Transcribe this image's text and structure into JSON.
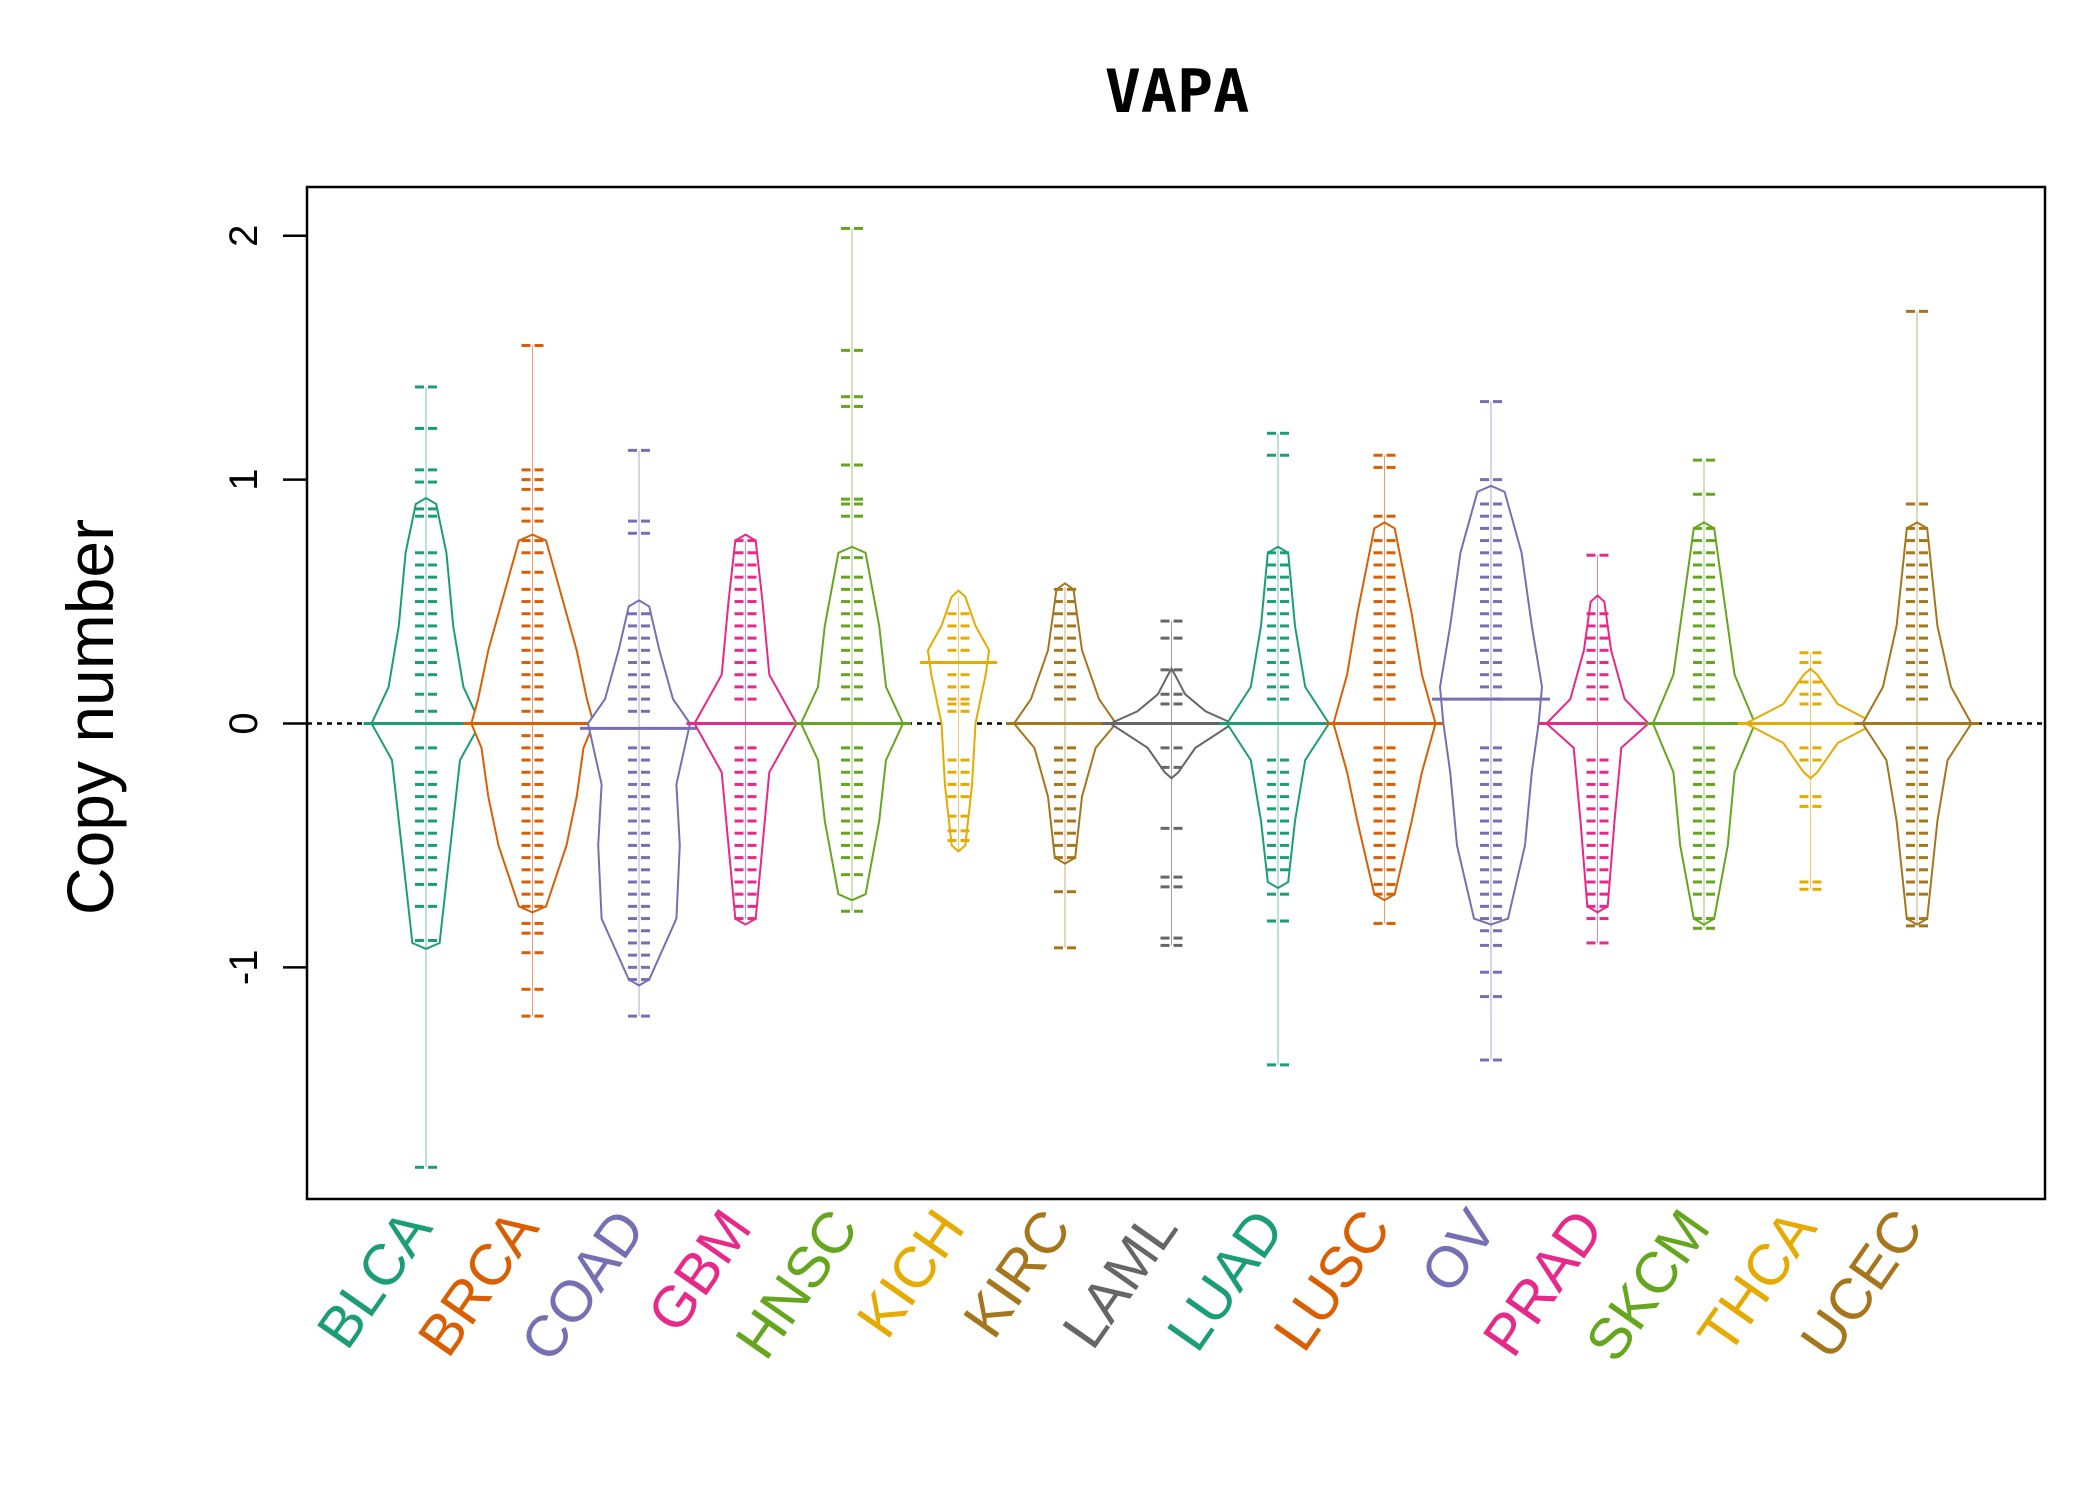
{
  "chart_data": {
    "type": "beanplot",
    "title": "VAPA",
    "xlabel": "",
    "ylabel": "Copy number",
    "ylim": [
      -1.95,
      2.2
    ],
    "yticks": [
      {
        "value": -1,
        "label": "-1"
      },
      {
        "value": 0,
        "label": "0"
      },
      {
        "value": 1,
        "label": "1"
      },
      {
        "value": 2,
        "label": "2"
      }
    ],
    "reference_line": 0,
    "categories": [
      {
        "name": "BLCA",
        "color": "#1B9E77",
        "median": 0.0,
        "max_width": 0.32,
        "min": -1.82,
        "max": 1.38,
        "profile": [
          [
            -0.9,
            0.08
          ],
          [
            -0.65,
            0.12
          ],
          [
            -0.4,
            0.16
          ],
          [
            -0.15,
            0.2
          ],
          [
            0.0,
            0.32
          ],
          [
            0.15,
            0.22
          ],
          [
            0.4,
            0.16
          ],
          [
            0.7,
            0.12
          ],
          [
            0.9,
            0.06
          ]
        ],
        "points": [
          -1.82,
          -0.89,
          -0.75,
          -0.66,
          -0.6,
          -0.55,
          -0.5,
          -0.45,
          -0.4,
          -0.35,
          -0.3,
          -0.25,
          -0.2,
          -0.1,
          0.05,
          0.12,
          0.2,
          0.25,
          0.3,
          0.35,
          0.4,
          0.45,
          0.5,
          0.55,
          0.6,
          0.65,
          0.7,
          0.85,
          0.88,
          0.99,
          1.04,
          1.21,
          1.38
        ]
      },
      {
        "name": "BRCA",
        "color": "#D95F02",
        "median": 0.0,
        "max_width": 0.36,
        "min": -1.2,
        "max": 1.55,
        "profile": [
          [
            -0.75,
            0.08
          ],
          [
            -0.5,
            0.2
          ],
          [
            -0.3,
            0.26
          ],
          [
            -0.1,
            0.3
          ],
          [
            0.0,
            0.36
          ],
          [
            0.1,
            0.32
          ],
          [
            0.3,
            0.26
          ],
          [
            0.5,
            0.18
          ],
          [
            0.75,
            0.08
          ]
        ],
        "points": [
          -1.2,
          -1.09,
          -0.94,
          -0.86,
          -0.82,
          -0.75,
          -0.7,
          -0.65,
          -0.6,
          -0.55,
          -0.5,
          -0.45,
          -0.4,
          -0.35,
          -0.3,
          -0.25,
          -0.2,
          -0.15,
          -0.1,
          -0.05,
          0.05,
          0.1,
          0.15,
          0.2,
          0.25,
          0.3,
          0.35,
          0.4,
          0.45,
          0.5,
          0.55,
          0.62,
          0.7,
          0.75,
          0.83,
          0.88,
          0.96,
          1.0,
          1.04,
          1.55
        ]
      },
      {
        "name": "COAD",
        "color": "#7570B3",
        "median": -0.02,
        "max_width": 0.3,
        "min": -1.2,
        "max": 1.12,
        "profile": [
          [
            -1.05,
            0.06
          ],
          [
            -0.8,
            0.22
          ],
          [
            -0.5,
            0.24
          ],
          [
            -0.25,
            0.22
          ],
          [
            0.0,
            0.3
          ],
          [
            0.1,
            0.2
          ],
          [
            0.3,
            0.12
          ],
          [
            0.48,
            0.06
          ]
        ],
        "points": [
          -1.2,
          -1.05,
          -1.0,
          -0.95,
          -0.9,
          -0.85,
          -0.8,
          -0.75,
          -0.7,
          -0.65,
          -0.6,
          -0.55,
          -0.5,
          -0.45,
          -0.4,
          -0.35,
          -0.3,
          -0.25,
          -0.2,
          -0.15,
          -0.1,
          0.05,
          0.1,
          0.15,
          0.2,
          0.25,
          0.3,
          0.35,
          0.4,
          0.45,
          0.78,
          0.83,
          1.12
        ]
      },
      {
        "name": "GBM",
        "color": "#E7298A",
        "median": 0.0,
        "max_width": 0.3,
        "min": -0.8,
        "max": 0.75,
        "profile": [
          [
            -0.8,
            0.06
          ],
          [
            -0.5,
            0.1
          ],
          [
            -0.2,
            0.14
          ],
          [
            0.0,
            0.3
          ],
          [
            0.2,
            0.14
          ],
          [
            0.5,
            0.1
          ],
          [
            0.75,
            0.06
          ]
        ],
        "points": [
          -0.8,
          -0.75,
          -0.7,
          -0.65,
          -0.6,
          -0.55,
          -0.5,
          -0.45,
          -0.4,
          -0.35,
          -0.3,
          -0.25,
          -0.2,
          -0.15,
          -0.1,
          0.1,
          0.15,
          0.2,
          0.25,
          0.3,
          0.35,
          0.4,
          0.45,
          0.5,
          0.55,
          0.6,
          0.65,
          0.7,
          0.75
        ]
      },
      {
        "name": "HNSC",
        "color": "#66A61E",
        "median": 0.0,
        "max_width": 0.3,
        "min": -0.77,
        "max": 2.03,
        "profile": [
          [
            -0.7,
            0.08
          ],
          [
            -0.4,
            0.16
          ],
          [
            -0.15,
            0.2
          ],
          [
            0.0,
            0.3
          ],
          [
            0.15,
            0.2
          ],
          [
            0.4,
            0.16
          ],
          [
            0.7,
            0.08
          ]
        ],
        "points": [
          -0.77,
          -0.62,
          -0.55,
          -0.5,
          -0.45,
          -0.4,
          -0.35,
          -0.3,
          -0.25,
          -0.2,
          -0.15,
          -0.1,
          0.1,
          0.15,
          0.2,
          0.25,
          0.3,
          0.35,
          0.4,
          0.45,
          0.5,
          0.55,
          0.6,
          0.68,
          0.85,
          0.9,
          0.92,
          1.06,
          1.3,
          1.34,
          1.53,
          2.03
        ]
      },
      {
        "name": "KICH",
        "color": "#E6AB02",
        "median": 0.25,
        "max_width": 0.18,
        "min": -0.52,
        "max": 0.52,
        "profile": [
          [
            -0.5,
            0.04
          ],
          [
            -0.25,
            0.08
          ],
          [
            0.0,
            0.1
          ],
          [
            0.2,
            0.16
          ],
          [
            0.3,
            0.18
          ],
          [
            0.4,
            0.1
          ],
          [
            0.52,
            0.04
          ]
        ],
        "points": [
          -0.48,
          -0.44,
          -0.38,
          -0.3,
          -0.25,
          -0.2,
          -0.15,
          0.05,
          0.08,
          0.1,
          0.15,
          0.2,
          0.25,
          0.3,
          0.35,
          0.4,
          0.45
        ]
      },
      {
        "name": "KIRC",
        "color": "#A6761D",
        "median": 0.0,
        "max_width": 0.3,
        "min": -0.92,
        "max": 0.56,
        "profile": [
          [
            -0.55,
            0.06
          ],
          [
            -0.3,
            0.1
          ],
          [
            -0.1,
            0.18
          ],
          [
            0.0,
            0.3
          ],
          [
            0.1,
            0.2
          ],
          [
            0.3,
            0.1
          ],
          [
            0.55,
            0.05
          ]
        ],
        "points": [
          -0.92,
          -0.69,
          -0.55,
          -0.5,
          -0.45,
          -0.4,
          -0.35,
          -0.3,
          -0.25,
          -0.2,
          -0.15,
          -0.1,
          0.1,
          0.15,
          0.2,
          0.25,
          0.3,
          0.35,
          0.4,
          0.45,
          0.5,
          0.55
        ]
      },
      {
        "name": "LAML",
        "color": "#666666",
        "median": 0.0,
        "max_width": 0.36,
        "min": -0.91,
        "max": 0.42,
        "profile": [
          [
            -0.2,
            0.04
          ],
          [
            -0.1,
            0.14
          ],
          [
            0.0,
            0.36
          ],
          [
            0.05,
            0.2
          ],
          [
            0.12,
            0.08
          ],
          [
            0.2,
            0.02
          ]
        ],
        "points": [
          -0.91,
          -0.88,
          -0.67,
          -0.63,
          -0.43,
          -0.18,
          -0.1,
          0.08,
          0.12,
          0.22,
          0.35,
          0.42
        ]
      },
      {
        "name": "LUAD",
        "color": "#1B9E77",
        "median": 0.0,
        "max_width": 0.3,
        "min": -1.4,
        "max": 1.19,
        "profile": [
          [
            -0.65,
            0.06
          ],
          [
            -0.4,
            0.1
          ],
          [
            -0.15,
            0.16
          ],
          [
            0.0,
            0.3
          ],
          [
            0.15,
            0.16
          ],
          [
            0.4,
            0.1
          ],
          [
            0.7,
            0.06
          ]
        ],
        "points": [
          -1.4,
          -0.81,
          -0.7,
          -0.6,
          -0.55,
          -0.5,
          -0.45,
          -0.4,
          -0.35,
          -0.3,
          -0.25,
          -0.2,
          -0.15,
          0.1,
          0.15,
          0.2,
          0.25,
          0.3,
          0.35,
          0.4,
          0.45,
          0.5,
          0.55,
          0.6,
          0.65,
          0.7,
          1.1,
          1.19
        ]
      },
      {
        "name": "LUSC",
        "color": "#D95F02",
        "median": 0.0,
        "max_width": 0.3,
        "min": -0.82,
        "max": 1.1,
        "profile": [
          [
            -0.7,
            0.06
          ],
          [
            -0.4,
            0.16
          ],
          [
            -0.2,
            0.22
          ],
          [
            0.0,
            0.3
          ],
          [
            0.2,
            0.22
          ],
          [
            0.45,
            0.16
          ],
          [
            0.8,
            0.06
          ]
        ],
        "points": [
          -0.82,
          -0.7,
          -0.66,
          -0.6,
          -0.55,
          -0.5,
          -0.45,
          -0.4,
          -0.35,
          -0.3,
          -0.25,
          -0.2,
          -0.15,
          -0.1,
          0.1,
          0.15,
          0.2,
          0.25,
          0.3,
          0.35,
          0.4,
          0.45,
          0.5,
          0.55,
          0.6,
          0.65,
          0.7,
          0.75,
          0.85,
          1.05,
          1.1
        ]
      },
      {
        "name": "OV",
        "color": "#7570B3",
        "median": 0.1,
        "max_width": 0.3,
        "min": -1.38,
        "max": 1.32,
        "profile": [
          [
            -0.8,
            0.1
          ],
          [
            -0.5,
            0.2
          ],
          [
            -0.2,
            0.24
          ],
          [
            0.0,
            0.28
          ],
          [
            0.15,
            0.3
          ],
          [
            0.4,
            0.24
          ],
          [
            0.7,
            0.18
          ],
          [
            0.95,
            0.08
          ]
        ],
        "points": [
          -1.38,
          -1.12,
          -1.02,
          -0.91,
          -0.85,
          -0.8,
          -0.75,
          -0.7,
          -0.65,
          -0.6,
          -0.55,
          -0.5,
          -0.45,
          -0.4,
          -0.35,
          -0.3,
          -0.25,
          -0.2,
          -0.15,
          -0.1,
          0.1,
          0.15,
          0.2,
          0.25,
          0.3,
          0.35,
          0.4,
          0.45,
          0.5,
          0.55,
          0.6,
          0.65,
          0.7,
          0.75,
          0.8,
          0.85,
          0.9,
          1.0,
          1.32
        ]
      },
      {
        "name": "PRAD",
        "color": "#E7298A",
        "median": 0.0,
        "max_width": 0.3,
        "min": -0.9,
        "max": 0.69,
        "profile": [
          [
            -0.75,
            0.06
          ],
          [
            -0.4,
            0.1
          ],
          [
            -0.1,
            0.14
          ],
          [
            0.0,
            0.3
          ],
          [
            0.1,
            0.16
          ],
          [
            0.3,
            0.08
          ],
          [
            0.5,
            0.04
          ]
        ],
        "points": [
          -0.9,
          -0.8,
          -0.75,
          -0.7,
          -0.65,
          -0.6,
          -0.55,
          -0.5,
          -0.45,
          -0.4,
          -0.35,
          -0.3,
          -0.25,
          -0.2,
          -0.15,
          0.1,
          0.15,
          0.2,
          0.25,
          0.3,
          0.35,
          0.4,
          0.45,
          0.69
        ]
      },
      {
        "name": "SKCM",
        "color": "#66A61E",
        "median": 0.0,
        "max_width": 0.3,
        "min": -0.84,
        "max": 1.08,
        "profile": [
          [
            -0.8,
            0.06
          ],
          [
            -0.5,
            0.14
          ],
          [
            -0.2,
            0.18
          ],
          [
            0.0,
            0.3
          ],
          [
            0.2,
            0.18
          ],
          [
            0.5,
            0.12
          ],
          [
            0.8,
            0.06
          ]
        ],
        "points": [
          -0.84,
          -0.8,
          -0.7,
          -0.65,
          -0.6,
          -0.55,
          -0.5,
          -0.45,
          -0.4,
          -0.35,
          -0.3,
          -0.25,
          -0.2,
          -0.15,
          -0.1,
          0.1,
          0.15,
          0.2,
          0.25,
          0.3,
          0.35,
          0.4,
          0.45,
          0.5,
          0.55,
          0.6,
          0.65,
          0.7,
          0.75,
          0.8,
          0.94,
          1.08
        ]
      },
      {
        "name": "THCA",
        "color": "#E6AB02",
        "median": 0.0,
        "max_width": 0.38,
        "min": -0.68,
        "max": 0.29,
        "profile": [
          [
            -0.2,
            0.04
          ],
          [
            -0.08,
            0.16
          ],
          [
            0.0,
            0.38
          ],
          [
            0.08,
            0.16
          ],
          [
            0.2,
            0.04
          ]
        ],
        "points": [
          -0.68,
          -0.65,
          -0.34,
          -0.3,
          -0.15,
          -0.1,
          0.08,
          0.12,
          0.17,
          0.25,
          0.29
        ]
      },
      {
        "name": "UCEC",
        "color": "#A6761D",
        "median": 0.0,
        "max_width": 0.32,
        "min": -0.83,
        "max": 1.69,
        "profile": [
          [
            -0.8,
            0.06
          ],
          [
            -0.4,
            0.12
          ],
          [
            -0.15,
            0.18
          ],
          [
            0.0,
            0.32
          ],
          [
            0.15,
            0.2
          ],
          [
            0.4,
            0.12
          ],
          [
            0.8,
            0.06
          ]
        ],
        "points": [
          -0.83,
          -0.8,
          -0.7,
          -0.65,
          -0.6,
          -0.55,
          -0.5,
          -0.45,
          -0.4,
          -0.35,
          -0.3,
          -0.25,
          -0.2,
          -0.15,
          -0.1,
          0.1,
          0.15,
          0.2,
          0.25,
          0.3,
          0.35,
          0.4,
          0.45,
          0.5,
          0.55,
          0.6,
          0.65,
          0.7,
          0.75,
          0.8,
          0.9,
          1.69
        ]
      }
    ]
  }
}
